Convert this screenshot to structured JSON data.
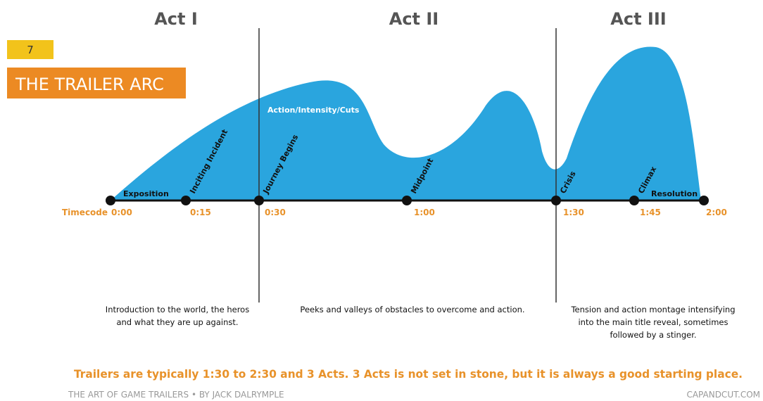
{
  "slide_number": "7",
  "title": "THE TRAILER ARC",
  "acts": [
    "Act I",
    "Act II",
    "Act III"
  ],
  "curve_label": "Action/Intensity/Cuts",
  "beats": [
    "Exposition",
    "Inciting Incident",
    "Journey Begins",
    "Midpoint",
    "Crisis",
    "Climax",
    "Resolution"
  ],
  "timecode_label": "Timecode",
  "timecodes": [
    "0:00",
    "0:15",
    "0:30",
    "1:00",
    "1:30",
    "1:45",
    "2:00"
  ],
  "descriptions": [
    [
      "Introduction to the world, the heros",
      "and what they are up against."
    ],
    [
      "Peeks and valleys of obstacles to overcome and action."
    ],
    [
      "Tension and action montage intensifying",
      "into the main title reveal, sometimes",
      "followed by a stinger."
    ]
  ],
  "note": "Trailers are typically 1:30 to 2:30 and 3 Acts. 3 Acts is not set in stone, but it is always a good starting place.",
  "footer": {
    "left": "THE ART OF GAME TRAILERS • BY JACK DALRYMPLE",
    "right": "CAPANDCUT.COM"
  }
}
